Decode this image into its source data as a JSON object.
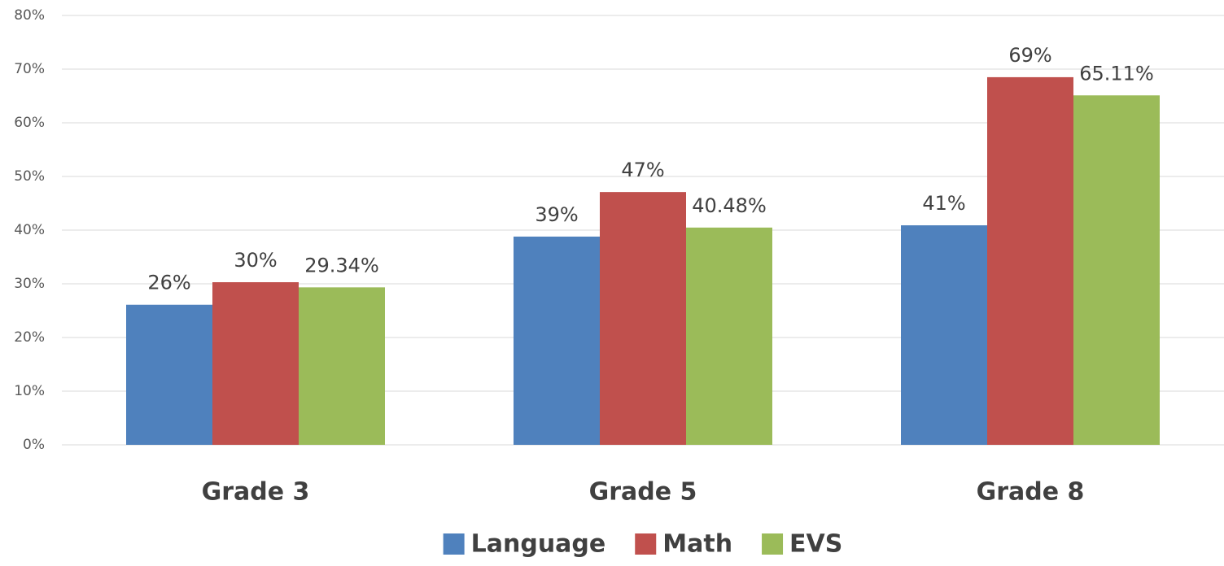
{
  "chart_data": {
    "type": "bar",
    "categories": [
      "Grade 3",
      "Grade 5",
      "Grade 8"
    ],
    "series": [
      {
        "name": "Language",
        "color": "#4f81bd",
        "values": [
          26.1,
          38.8,
          40.9
        ],
        "value_labels": [
          "26%",
          "39%",
          "41%"
        ]
      },
      {
        "name": "Math",
        "color": "#c0504d",
        "values": [
          30.3,
          47.1,
          68.5
        ],
        "value_labels": [
          "30%",
          "47%",
          "69%"
        ]
      },
      {
        "name": "EVS",
        "color": "#9bbb59",
        "values": [
          29.34,
          40.48,
          65.11
        ],
        "value_labels": [
          "29.34%",
          "40.48%",
          "65.11%"
        ]
      }
    ],
    "ylim": [
      0,
      80
    ],
    "yticks": [
      {
        "value": 0,
        "label": "0%"
      },
      {
        "value": 10,
        "label": "10%"
      },
      {
        "value": 20,
        "label": "20%"
      },
      {
        "value": 30,
        "label": "30%"
      },
      {
        "value": 40,
        "label": "40%"
      },
      {
        "value": 50,
        "label": "50%"
      },
      {
        "value": 60,
        "label": "60%"
      },
      {
        "value": 70,
        "label": "70%"
      },
      {
        "value": 80,
        "label": "80%"
      }
    ],
    "grid": true,
    "legend": "bottom"
  }
}
